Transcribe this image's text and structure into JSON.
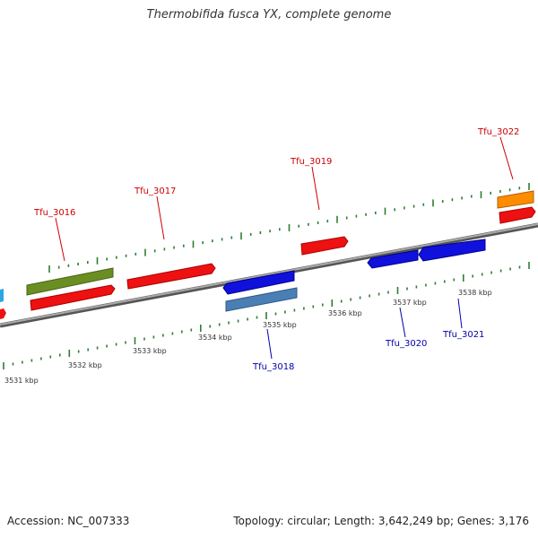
{
  "title": "Thermobifida fusca YX, complete genome",
  "footer": {
    "accession": "Accession: NC_007333",
    "stats": "Topology: circular; Length: 3,642,249 bp; Genes: 3,176"
  },
  "colors": {
    "forward": "#ee1111",
    "reverse": "#1111dd",
    "forward_label": "#cc0000",
    "reverse_label": "#0000aa",
    "tick": "#2e7d32",
    "backbone": "#777777"
  },
  "ticks": [
    "3531 kbp",
    "3532 kbp",
    "3533 kbp",
    "3534 kbp",
    "3535 kbp",
    "3536 kbp",
    "3537 kbp",
    "3538 kbp"
  ],
  "genes_forward": [
    "Tfu_3016",
    "Tfu_3017",
    "Tfu_3019",
    "Tfu_3022"
  ],
  "genes_reverse": [
    "Tfu_3018",
    "Tfu_3020",
    "Tfu_3021"
  ]
}
